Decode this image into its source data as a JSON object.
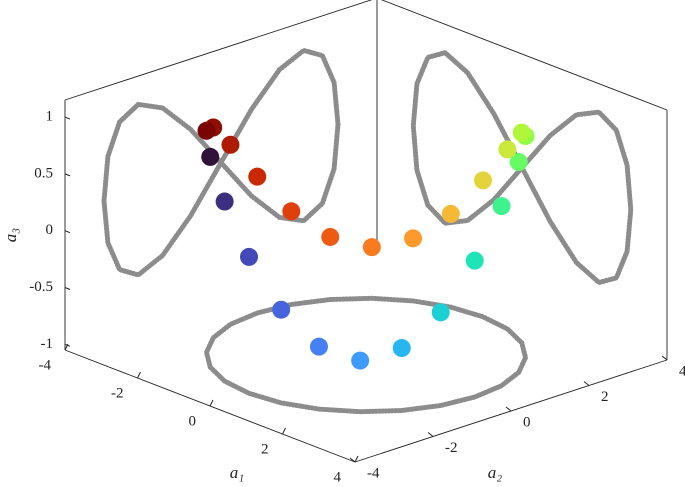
{
  "chart_data": {
    "type": "scatter3d",
    "xlabel": "a₁",
    "ylabel": "a₂",
    "zlabel": "a₃",
    "xlim": [
      -4,
      4
    ],
    "ylim": [
      -4,
      4
    ],
    "zlim": [
      -1.05,
      1.15
    ],
    "xticks": [
      -4,
      -2,
      0,
      2,
      4
    ],
    "yticks": [
      -4,
      -2,
      0,
      2,
      4
    ],
    "zticks": [
      -1,
      -0.5,
      0,
      0.5,
      1
    ],
    "projection_color": "#8c8c8c",
    "series": [
      {
        "x": [
          -1.5,
          -0.78,
          0,
          0.78,
          1.5,
          2.12,
          2.6,
          2.9,
          3,
          2.9,
          2.6,
          2.12,
          1.5,
          0.78,
          0,
          -0.78,
          -1.5,
          -2.12,
          -2.6,
          -2.9,
          -3,
          -2.9,
          -2.6,
          -2.12
        ],
        "y": [
          -2.6,
          -2.9,
          -3,
          -2.9,
          -2.6,
          -2.12,
          -1.5,
          -0.78,
          0,
          0.78,
          1.5,
          2.12,
          2.6,
          2.9,
          3,
          2.9,
          2.6,
          2.12,
          1.5,
          0.78,
          0,
          -0.78,
          -1.5,
          -2.12
        ],
        "z": [
          0.8,
          0.53,
          0.15,
          -0.23,
          -0.5,
          -0.6,
          -0.5,
          -0.23,
          0.15,
          0.53,
          0.8,
          0.9,
          0.8,
          0.53,
          0.15,
          -0.23,
          -0.5,
          -0.6,
          -0.5,
          -0.23,
          0.15,
          0.53,
          0.8,
          0.9
        ],
        "colors": [
          "#30123b",
          "#3b2f80",
          "#4249b8",
          "#4665dd",
          "#4680f5",
          "#3d9bfe",
          "#28b6f0",
          "#1bd0d5",
          "#1fe5b6",
          "#3ef28e",
          "#66fc63",
          "#8efe45",
          "#b0f73c",
          "#cbe93b",
          "#e4d33a",
          "#f5b935",
          "#fd9a2b",
          "#fa7a1f",
          "#ef5a13",
          "#df3f0b",
          "#c92a04",
          "#ae1b02",
          "#8e0e01",
          "#7a0403"
        ]
      }
    ]
  }
}
